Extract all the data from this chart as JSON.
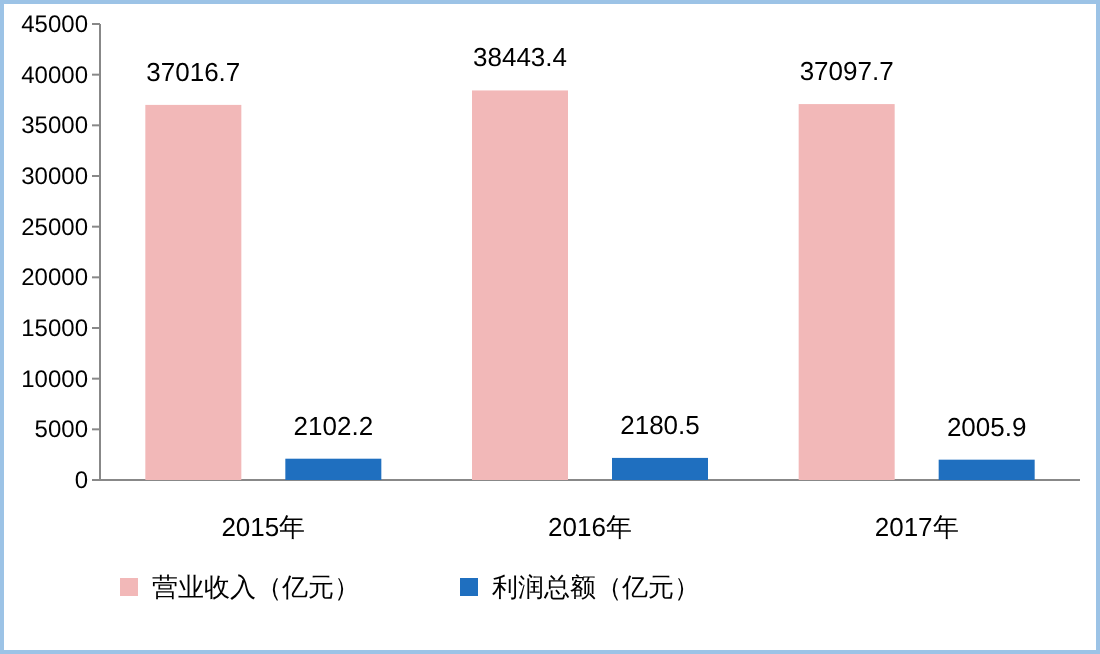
{
  "chart_data": {
    "type": "bar",
    "categories": [
      "2015年",
      "2016年",
      "2017年"
    ],
    "series": [
      {
        "name": "营业收入（亿元）",
        "color": "#f2b8b8",
        "values": [
          37016.7,
          38443.4,
          37097.7
        ]
      },
      {
        "name": "利润总额（亿元）",
        "color": "#1f6fbf",
        "values": [
          2102.2,
          2180.5,
          2005.9
        ]
      }
    ],
    "ylim": [
      0,
      45000
    ],
    "yticks": [
      0,
      5000,
      10000,
      15000,
      20000,
      25000,
      30000,
      35000,
      40000,
      45000
    ],
    "data_labels": true,
    "legend": "bottom",
    "grid": false
  }
}
